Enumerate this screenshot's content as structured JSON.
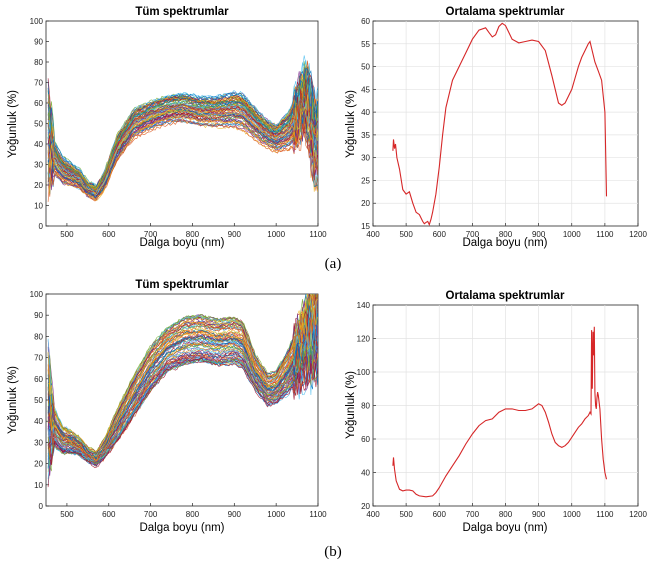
{
  "figure": {
    "caption_a": "(a)",
    "caption_b": "(b)"
  },
  "chart_data": [
    {
      "id": "a_all",
      "type": "line",
      "title": "Tüm spektrumlar",
      "xlabel": "Dalga boyu (nm)",
      "ylabel": "Yoğunluk (%)",
      "xlim": [
        450,
        1100
      ],
      "ylim": [
        0,
        100
      ],
      "xticks": [
        500,
        600,
        700,
        800,
        900,
        1000,
        1100
      ],
      "yticks": [
        0,
        10,
        20,
        30,
        40,
        50,
        60,
        70,
        80,
        90,
        100
      ],
      "grid": false,
      "series_count": 80,
      "x": [
        455,
        470,
        490,
        510,
        530,
        550,
        570,
        590,
        620,
        660,
        700,
        740,
        780,
        820,
        860,
        900,
        920,
        950,
        980,
        1000,
        1030,
        1050,
        1070,
        1080,
        1090,
        1095,
        1100
      ],
      "mean_values": [
        42,
        33,
        27,
        25,
        23,
        18,
        16,
        22,
        38,
        50,
        54,
        57,
        58,
        56,
        56,
        57,
        56,
        50,
        45,
        43,
        47,
        54,
        62,
        55,
        45,
        40,
        42
      ],
      "spread": [
        22,
        8,
        6,
        5,
        4,
        3,
        3,
        4,
        6,
        7,
        7,
        7,
        7,
        7,
        7,
        8,
        8,
        7,
        6,
        6,
        9,
        12,
        15,
        17,
        18,
        18,
        18
      ]
    },
    {
      "id": "a_mean",
      "type": "line",
      "title": "Ortalama spektrumlar",
      "xlabel": "Dalga boyu (nm)",
      "ylabel": "Yoğunluk (%)",
      "xlim": [
        400,
        1200
      ],
      "ylim": [
        15,
        60
      ],
      "xticks": [
        400,
        500,
        600,
        700,
        800,
        900,
        1000,
        1100,
        1200
      ],
      "yticks": [
        15,
        20,
        25,
        30,
        35,
        40,
        45,
        50,
        55,
        60
      ],
      "grid": true,
      "color": "#d62728",
      "x": [
        460,
        462,
        465,
        468,
        472,
        480,
        490,
        500,
        510,
        520,
        530,
        540,
        550,
        555,
        560,
        565,
        570,
        575,
        580,
        590,
        600,
        610,
        620,
        640,
        660,
        680,
        700,
        720,
        740,
        750,
        760,
        770,
        780,
        790,
        800,
        810,
        820,
        840,
        860,
        880,
        900,
        920,
        940,
        960,
        970,
        980,
        990,
        1000,
        1010,
        1020,
        1030,
        1040,
        1050,
        1055,
        1060,
        1070,
        1080,
        1090,
        1100,
        1105
      ],
      "y": [
        31.5,
        34,
        32,
        33,
        30,
        27.5,
        23,
        22,
        22.5,
        20,
        18,
        17.5,
        16,
        15.5,
        15.8,
        16,
        15.3,
        16.5,
        18,
        22,
        28,
        35,
        41,
        47,
        50,
        53,
        56,
        58,
        58.5,
        57.5,
        56.5,
        57,
        58.8,
        59.5,
        59,
        57.5,
        56,
        55.2,
        55.5,
        55.8,
        55.5,
        53.5,
        48,
        42,
        41.5,
        42,
        43.5,
        45,
        47.5,
        50,
        52,
        53.5,
        55,
        55.5,
        54,
        51,
        49,
        47,
        40,
        21.5
      ]
    },
    {
      "id": "b_all",
      "type": "line",
      "title": "Tüm spektrumlar",
      "xlabel": "Dalga boyu (nm)",
      "ylabel": "Yoğunluk (%)",
      "xlim": [
        450,
        1100
      ],
      "ylim": [
        0,
        100
      ],
      "xticks": [
        500,
        600,
        700,
        800,
        900,
        1000,
        1100
      ],
      "yticks": [
        0,
        10,
        20,
        30,
        40,
        50,
        60,
        70,
        80,
        90,
        100
      ],
      "grid": false,
      "series_count": 80,
      "x": [
        455,
        470,
        490,
        510,
        530,
        550,
        570,
        590,
        620,
        660,
        700,
        740,
        780,
        820,
        860,
        900,
        920,
        950,
        980,
        1000,
        1030,
        1050,
        1070,
        1080,
        1090,
        1095,
        1100
      ],
      "mean_values": [
        45,
        37,
        31,
        30,
        28,
        24,
        22,
        27,
        38,
        52,
        65,
        74,
        78,
        79,
        77,
        78,
        76,
        63,
        55,
        56,
        64,
        72,
        78,
        82,
        85,
        86,
        86
      ],
      "spread": [
        22,
        8,
        6,
        5,
        4,
        3,
        3,
        4,
        7,
        9,
        10,
        10,
        11,
        11,
        11,
        11,
        11,
        8,
        7,
        7,
        10,
        13,
        16,
        18,
        19,
        20,
        20
      ]
    },
    {
      "id": "b_mean",
      "type": "line",
      "title": "Ortalama spektrumlar",
      "xlabel": "Dalga boyu (nm)",
      "ylabel": "Yoğunluk (%)",
      "xlim": [
        400,
        1200
      ],
      "ylim": [
        20,
        140
      ],
      "xticks": [
        400,
        500,
        600,
        700,
        800,
        900,
        1000,
        1100,
        1200
      ],
      "yticks": [
        20,
        40,
        60,
        80,
        100,
        120,
        140
      ],
      "grid": true,
      "color": "#d62728",
      "x": [
        460,
        462,
        465,
        470,
        480,
        490,
        500,
        510,
        520,
        530,
        540,
        560,
        580,
        590,
        600,
        620,
        640,
        660,
        680,
        700,
        720,
        740,
        760,
        780,
        800,
        820,
        840,
        860,
        880,
        900,
        910,
        920,
        930,
        940,
        950,
        960,
        970,
        980,
        990,
        1000,
        1010,
        1020,
        1030,
        1040,
        1050,
        1055,
        1058,
        1060,
        1062,
        1064,
        1066,
        1068,
        1070,
        1072,
        1074,
        1076,
        1078,
        1080,
        1085,
        1090,
        1095,
        1100,
        1105
      ],
      "y": [
        44,
        49,
        42,
        35,
        30,
        29,
        29.5,
        29.5,
        29,
        27,
        26,
        25.5,
        26,
        28,
        31,
        38,
        44,
        50,
        57,
        63,
        68,
        71,
        72,
        76,
        78,
        78,
        77,
        77,
        78,
        81,
        80,
        76,
        70,
        63,
        58,
        56,
        55,
        56,
        58,
        61,
        64,
        67,
        69,
        72,
        74,
        76,
        75,
        125,
        90,
        124,
        110,
        127,
        88,
        80,
        78,
        84,
        88,
        86,
        78,
        60,
        48,
        40,
        36
      ]
    }
  ]
}
